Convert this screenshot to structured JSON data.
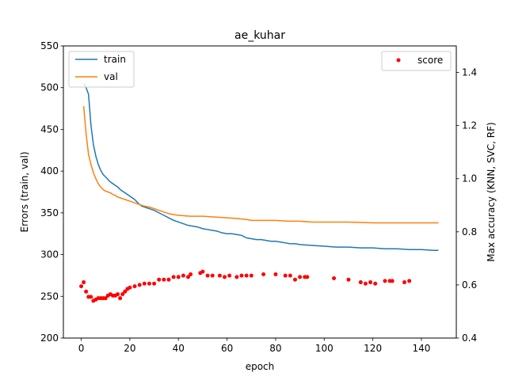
{
  "chart_data": {
    "type": "line",
    "title": "ae_kuhar",
    "xlabel": "epoch",
    "ylabel": "Errors (train, val)",
    "y2label": "Max accuracy (KNN, SVC, RF)",
    "xlim": [
      -7.35,
      154.35
    ],
    "ylim": [
      200,
      550
    ],
    "y2lim": [
      0.4,
      1.5
    ],
    "xticks": [
      0,
      20,
      40,
      60,
      80,
      100,
      120,
      140
    ],
    "yticks": [
      200,
      250,
      300,
      350,
      400,
      450,
      500,
      550
    ],
    "y2ticks": [
      0.4,
      0.6,
      0.8,
      1.0,
      1.2,
      1.4
    ],
    "grid": false,
    "legend_left": "upper-left",
    "legend_right": "upper-right",
    "series": [
      {
        "name": "train",
        "axis": "left",
        "color": "#1f77b4",
        "points": [
          [
            1,
            505
          ],
          [
            2,
            500
          ],
          [
            3,
            492
          ],
          [
            4,
            455
          ],
          [
            5,
            432
          ],
          [
            6,
            418
          ],
          [
            7,
            408
          ],
          [
            8,
            401
          ],
          [
            9,
            396
          ],
          [
            10,
            393
          ],
          [
            11,
            390
          ],
          [
            12,
            387
          ],
          [
            13,
            385
          ],
          [
            14,
            383
          ],
          [
            15,
            381
          ],
          [
            16,
            378
          ],
          [
            17,
            376
          ],
          [
            18,
            374
          ],
          [
            19,
            372
          ],
          [
            20,
            370
          ],
          [
            21,
            368
          ],
          [
            22,
            366
          ],
          [
            23,
            363
          ],
          [
            24,
            360
          ],
          [
            25,
            358
          ],
          [
            26,
            357
          ],
          [
            28,
            355
          ],
          [
            30,
            353
          ],
          [
            32,
            350
          ],
          [
            34,
            347
          ],
          [
            36,
            344
          ],
          [
            38,
            341
          ],
          [
            40,
            339
          ],
          [
            42,
            337
          ],
          [
            44,
            335
          ],
          [
            46,
            334
          ],
          [
            48,
            333
          ],
          [
            50,
            331
          ],
          [
            52,
            330
          ],
          [
            54,
            329
          ],
          [
            56,
            328
          ],
          [
            58,
            326
          ],
          [
            60,
            325
          ],
          [
            62,
            325
          ],
          [
            64,
            324
          ],
          [
            66,
            323
          ],
          [
            68,
            320
          ],
          [
            70,
            319
          ],
          [
            72,
            318
          ],
          [
            74,
            318
          ],
          [
            76,
            317
          ],
          [
            78,
            316
          ],
          [
            80,
            316
          ],
          [
            82,
            315
          ],
          [
            84,
            314
          ],
          [
            86,
            313
          ],
          [
            88,
            313
          ],
          [
            90,
            312
          ],
          [
            95,
            311
          ],
          [
            100,
            310
          ],
          [
            105,
            309
          ],
          [
            110,
            309
          ],
          [
            115,
            308
          ],
          [
            120,
            308
          ],
          [
            125,
            307
          ],
          [
            130,
            307
          ],
          [
            135,
            306
          ],
          [
            140,
            306
          ],
          [
            145,
            305
          ],
          [
            147,
            305
          ]
        ]
      },
      {
        "name": "val",
        "axis": "left",
        "color": "#ff7f0e",
        "points": [
          [
            1,
            478
          ],
          [
            2,
            445
          ],
          [
            3,
            420
          ],
          [
            4,
            408
          ],
          [
            5,
            398
          ],
          [
            6,
            391
          ],
          [
            7,
            385
          ],
          [
            8,
            381
          ],
          [
            9,
            378
          ],
          [
            10,
            376
          ],
          [
            11,
            375
          ],
          [
            12,
            374
          ],
          [
            13,
            372
          ],
          [
            14,
            371
          ],
          [
            15,
            369
          ],
          [
            16,
            368
          ],
          [
            17,
            367
          ],
          [
            18,
            366
          ],
          [
            19,
            365
          ],
          [
            20,
            364
          ],
          [
            22,
            362
          ],
          [
            24,
            360
          ],
          [
            26,
            358
          ],
          [
            28,
            357
          ],
          [
            30,
            355
          ],
          [
            32,
            353
          ],
          [
            34,
            351
          ],
          [
            36,
            349
          ],
          [
            38,
            348
          ],
          [
            40,
            347
          ],
          [
            45,
            346
          ],
          [
            50,
            346
          ],
          [
            55,
            345
          ],
          [
            60,
            344
          ],
          [
            65,
            343
          ],
          [
            68,
            342
          ],
          [
            70,
            341
          ],
          [
            75,
            341
          ],
          [
            80,
            341
          ],
          [
            85,
            340
          ],
          [
            90,
            340
          ],
          [
            95,
            339
          ],
          [
            100,
            339
          ],
          [
            110,
            339
          ],
          [
            120,
            338
          ],
          [
            130,
            338
          ],
          [
            140,
            338
          ],
          [
            147,
            338
          ]
        ]
      },
      {
        "name": "score",
        "axis": "right",
        "type": "scatter",
        "color": "#ff0000",
        "points": [
          [
            0,
            0.595
          ],
          [
            1,
            0.61
          ],
          [
            2,
            0.575
          ],
          [
            3,
            0.555
          ],
          [
            4,
            0.555
          ],
          [
            5,
            0.54
          ],
          [
            6,
            0.545
          ],
          [
            7,
            0.55
          ],
          [
            8,
            0.55
          ],
          [
            9,
            0.55
          ],
          [
            10,
            0.55
          ],
          [
            11,
            0.56
          ],
          [
            12,
            0.565
          ],
          [
            13,
            0.56
          ],
          [
            14,
            0.56
          ],
          [
            15,
            0.565
          ],
          [
            16,
            0.55
          ],
          [
            17,
            0.565
          ],
          [
            18,
            0.575
          ],
          [
            19,
            0.585
          ],
          [
            20,
            0.59
          ],
          [
            22,
            0.595
          ],
          [
            24,
            0.6
          ],
          [
            26,
            0.605
          ],
          [
            28,
            0.605
          ],
          [
            30,
            0.605
          ],
          [
            32,
            0.62
          ],
          [
            34,
            0.62
          ],
          [
            36,
            0.62
          ],
          [
            38,
            0.63
          ],
          [
            40,
            0.63
          ],
          [
            42,
            0.635
          ],
          [
            44,
            0.63
          ],
          [
            45,
            0.64
          ],
          [
            49,
            0.645
          ],
          [
            50,
            0.65
          ],
          [
            52,
            0.635
          ],
          [
            54,
            0.635
          ],
          [
            57,
            0.635
          ],
          [
            59,
            0.63
          ],
          [
            61,
            0.635
          ],
          [
            64,
            0.63
          ],
          [
            66,
            0.635
          ],
          [
            68,
            0.635
          ],
          [
            70,
            0.635
          ],
          [
            75,
            0.64
          ],
          [
            80,
            0.64
          ],
          [
            84,
            0.635
          ],
          [
            86,
            0.635
          ],
          [
            88,
            0.62
          ],
          [
            90,
            0.63
          ],
          [
            92,
            0.63
          ],
          [
            93,
            0.63
          ],
          [
            104,
            0.625
          ],
          [
            110,
            0.62
          ],
          [
            115,
            0.61
          ],
          [
            117,
            0.605
          ],
          [
            119,
            0.61
          ],
          [
            121,
            0.605
          ],
          [
            125,
            0.615
          ],
          [
            127,
            0.615
          ],
          [
            128,
            0.615
          ],
          [
            133,
            0.61
          ],
          [
            135,
            0.615
          ]
        ]
      }
    ]
  }
}
